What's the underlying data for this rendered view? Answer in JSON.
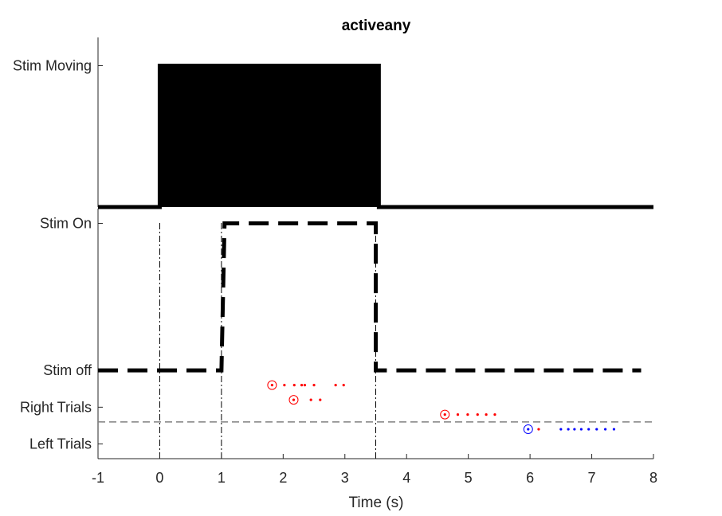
{
  "chart_data": {
    "type": "line",
    "title": "activeany",
    "xlabel": "Time (s)",
    "xlim": [
      -1,
      8
    ],
    "xticks": [
      -1,
      0,
      1,
      2,
      3,
      4,
      5,
      6,
      7,
      8
    ],
    "grid": false,
    "colors": {
      "axis": "#262626",
      "trace": "#000000",
      "right_trials": "#ff0000",
      "left_trials": "#0000ff",
      "divider": "#808080"
    },
    "panels": [
      {
        "id": "stim_moving",
        "yticks": [
          {
            "value": 1,
            "label": "Stim Moving"
          }
        ],
        "ylim": [
          0,
          1.2
        ],
        "series": [
          {
            "style": "filled-step",
            "x": [
              -1,
              0,
              0,
              3.55,
              3.55,
              8
            ],
            "y": [
              0,
              0,
              1,
              1,
              0,
              0
            ]
          }
        ]
      },
      {
        "id": "stimulus_and_trials",
        "yticks": [
          {
            "value": 4,
            "label": "Stim On"
          },
          {
            "value": 2,
            "label": "Stim off"
          },
          {
            "value": 1.5,
            "label": "Right Trials"
          },
          {
            "value": 1,
            "label": "Left Trials"
          }
        ],
        "ylim": [
          0.8,
          4.2
        ],
        "event_lines_x": [
          0,
          1,
          3.5
        ],
        "divider_y": 1.3,
        "series": [
          {
            "style": "dashed-step",
            "x": [
              -1,
              1,
              1.05,
              3.5,
              3.5,
              7.8
            ],
            "y": [
              2,
              2,
              4,
              4,
              2,
              2
            ]
          }
        ],
        "trial_markers": [
          {
            "side": "right",
            "y": 1.8,
            "start": 1.82,
            "licks": [
              2.02,
              2.18,
              2.3,
              2.35,
              2.5,
              2.85,
              2.98
            ]
          },
          {
            "side": "right",
            "y": 1.6,
            "start": 2.17,
            "licks": [
              2.45,
              2.6
            ]
          },
          {
            "side": "right",
            "y": 1.4,
            "start": 4.62,
            "licks": [
              4.83,
              4.99,
              5.15,
              5.29,
              5.43
            ]
          },
          {
            "side": "left",
            "y": 1.2,
            "start": 5.97,
            "licks": [
              6.14
            ],
            "lick_side": "right"
          },
          {
            "side": "left",
            "y": 1.2,
            "start": null,
            "licks": [
              6.5,
              6.62,
              6.72,
              6.83,
              6.95,
              7.08,
              7.22,
              7.36
            ]
          }
        ]
      }
    ]
  }
}
